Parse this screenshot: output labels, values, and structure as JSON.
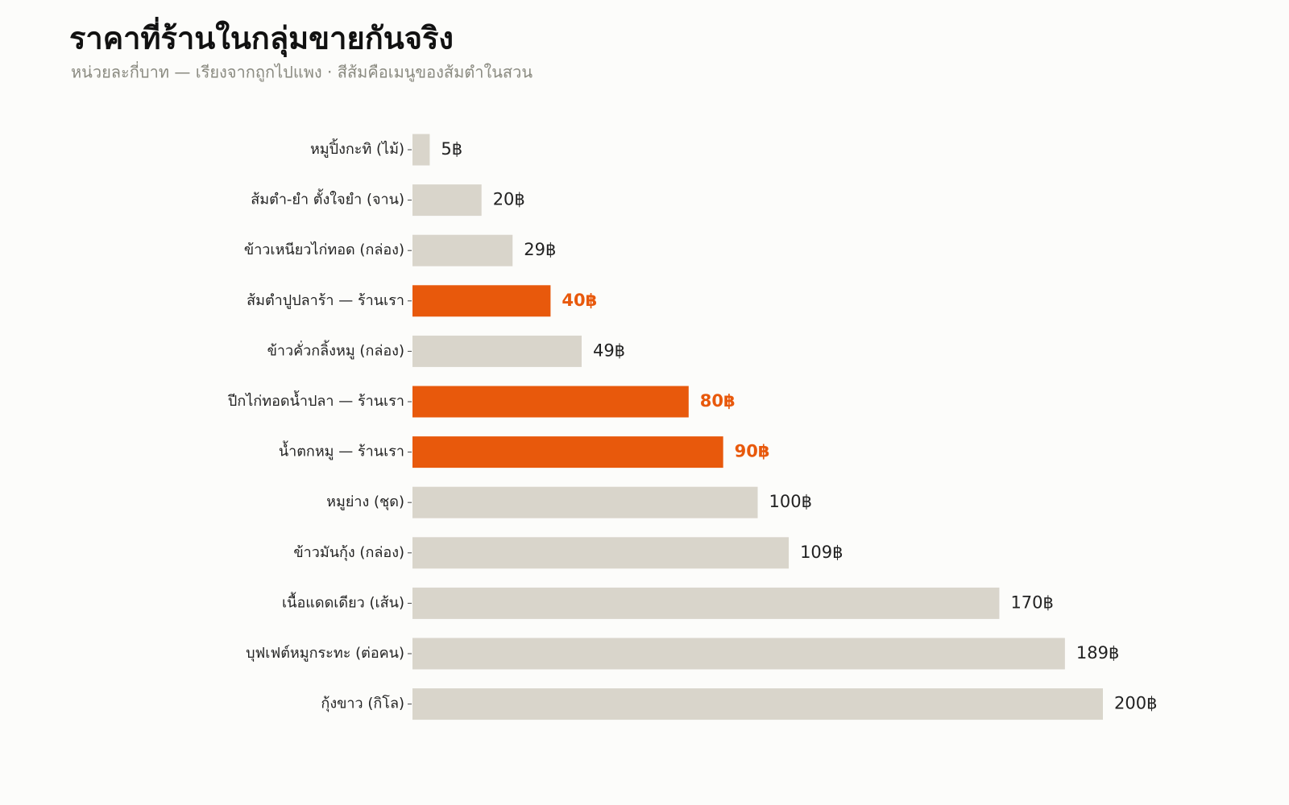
{
  "chart_data": {
    "type": "barh",
    "title": "ราคาที่ร้านในกลุ่มขายกันจริง",
    "subtitle": "หน่วยละกี่บาท — เรียงจากถูกไปแพง · สีส้มคือเมนูของส้มตำในสวน",
    "categories": [
      "หมูปิ้งกะทิ (ไม้)",
      "ส้มตำ-ยำ ตั้งใจยำ (จาน)",
      "ข้าวเหนียวไก่ทอด (กล่อง)",
      "ส้มตำปูปลาร้า — ร้านเรา",
      "ข้าวคั่วกลิ้งหมู (กล่อง)",
      "ปีกไก่ทอดน้ำปลา — ร้านเรา",
      "น้ำตกหมู — ร้านเรา",
      "หมูย่าง (ชุด)",
      "ข้าวมันกุ้ง (กล่อง)",
      "เนื้อแดดเดียว (เส้น)",
      "บุฟเฟต์หมูกระทะ (ต่อคน)",
      "กุ้งขาว (กิโล)"
    ],
    "values": [
      5,
      20,
      29,
      40,
      49,
      80,
      90,
      100,
      109,
      170,
      189,
      200
    ],
    "value_labels": [
      "5฿",
      "20฿",
      "29฿",
      "40฿",
      "49฿",
      "80฿",
      "90฿",
      "100฿",
      "109฿",
      "170฿",
      "189฿",
      "200฿"
    ],
    "color": "#d9d5cb",
    "highlight_color": "#e8590c",
    "highlighted": [
      false,
      false,
      false,
      true,
      false,
      true,
      true,
      false,
      false,
      false,
      false,
      false
    ]
  }
}
